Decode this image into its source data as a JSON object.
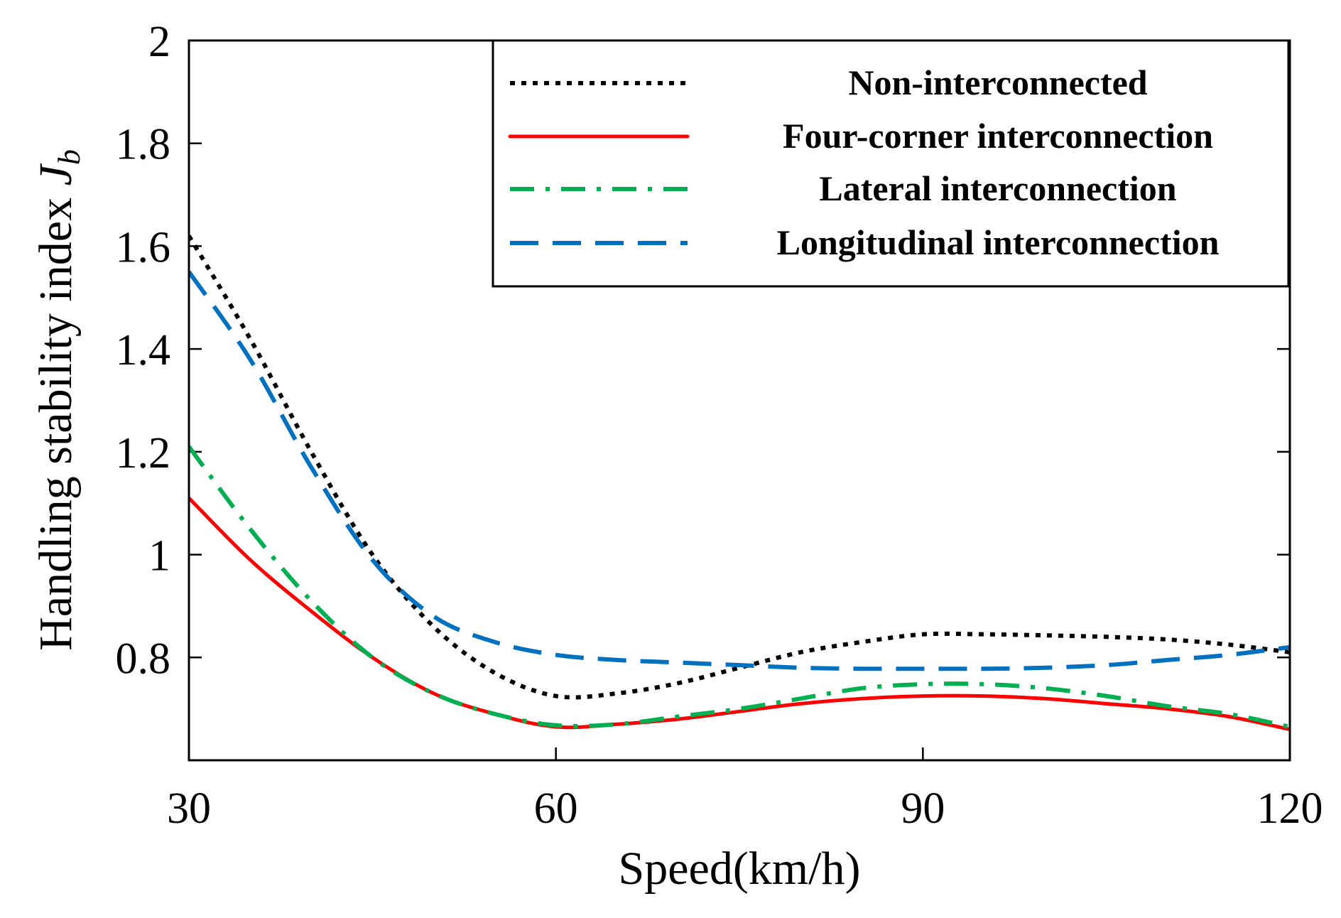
{
  "chart_data": {
    "type": "line",
    "xlabel": "Speed(km/h)",
    "ylabel_main": "Handling stability index ",
    "ylabel_symbol": "J",
    "ylabel_subscript": "b",
    "xlim": [
      30,
      120
    ],
    "ylim": [
      0.6,
      2.0
    ],
    "xticks": [
      30,
      60,
      90,
      120
    ],
    "yticks": [
      0.8,
      1,
      1.2,
      1.4,
      1.6,
      1.8,
      2
    ],
    "ytick_labels": [
      "0.8",
      "1",
      "1.2",
      "1.4",
      "1.6",
      "1.8",
      "2"
    ],
    "xtick_labels": [
      "30",
      "60",
      "90",
      "120"
    ],
    "grid": false,
    "legend_position": "top-right",
    "series": [
      {
        "name": "Non-interconnected",
        "color": "#000000",
        "style": "dotted",
        "x": [
          30,
          35,
          40,
          45,
          50,
          55,
          60,
          65,
          70,
          75,
          80,
          85,
          90,
          95,
          100,
          105,
          110,
          115,
          120
        ],
        "y": [
          1.62,
          1.42,
          1.2,
          1.0,
          0.86,
          0.77,
          0.725,
          0.73,
          0.75,
          0.78,
          0.81,
          0.83,
          0.845,
          0.845,
          0.843,
          0.84,
          0.835,
          0.825,
          0.81
        ]
      },
      {
        "name": "Four-corner interconnection",
        "color": "#ff0000",
        "style": "solid",
        "x": [
          30,
          35,
          40,
          45,
          50,
          55,
          60,
          65,
          70,
          75,
          80,
          85,
          90,
          95,
          100,
          105,
          110,
          115,
          120
        ],
        "y": [
          1.11,
          0.99,
          0.89,
          0.8,
          0.73,
          0.69,
          0.665,
          0.67,
          0.68,
          0.695,
          0.71,
          0.72,
          0.725,
          0.725,
          0.72,
          0.71,
          0.7,
          0.685,
          0.66
        ]
      },
      {
        "name": "Lateral interconnection",
        "color": "#00b050",
        "style": "dashdot",
        "x": [
          30,
          35,
          40,
          45,
          50,
          55,
          60,
          65,
          70,
          75,
          80,
          85,
          90,
          95,
          100,
          105,
          110,
          115,
          120
        ],
        "y": [
          1.21,
          1.05,
          0.91,
          0.8,
          0.73,
          0.69,
          0.668,
          0.67,
          0.685,
          0.7,
          0.72,
          0.74,
          0.748,
          0.748,
          0.74,
          0.725,
          0.705,
          0.69,
          0.665
        ]
      },
      {
        "name": "Longitudinal interconnection",
        "color": "#0070c0",
        "style": "dashed",
        "x": [
          30,
          35,
          40,
          45,
          50,
          55,
          60,
          65,
          70,
          75,
          80,
          85,
          90,
          95,
          100,
          105,
          110,
          115,
          120
        ],
        "y": [
          1.55,
          1.38,
          1.17,
          0.99,
          0.88,
          0.83,
          0.805,
          0.795,
          0.79,
          0.785,
          0.78,
          0.778,
          0.778,
          0.778,
          0.78,
          0.785,
          0.795,
          0.805,
          0.82
        ]
      }
    ]
  }
}
